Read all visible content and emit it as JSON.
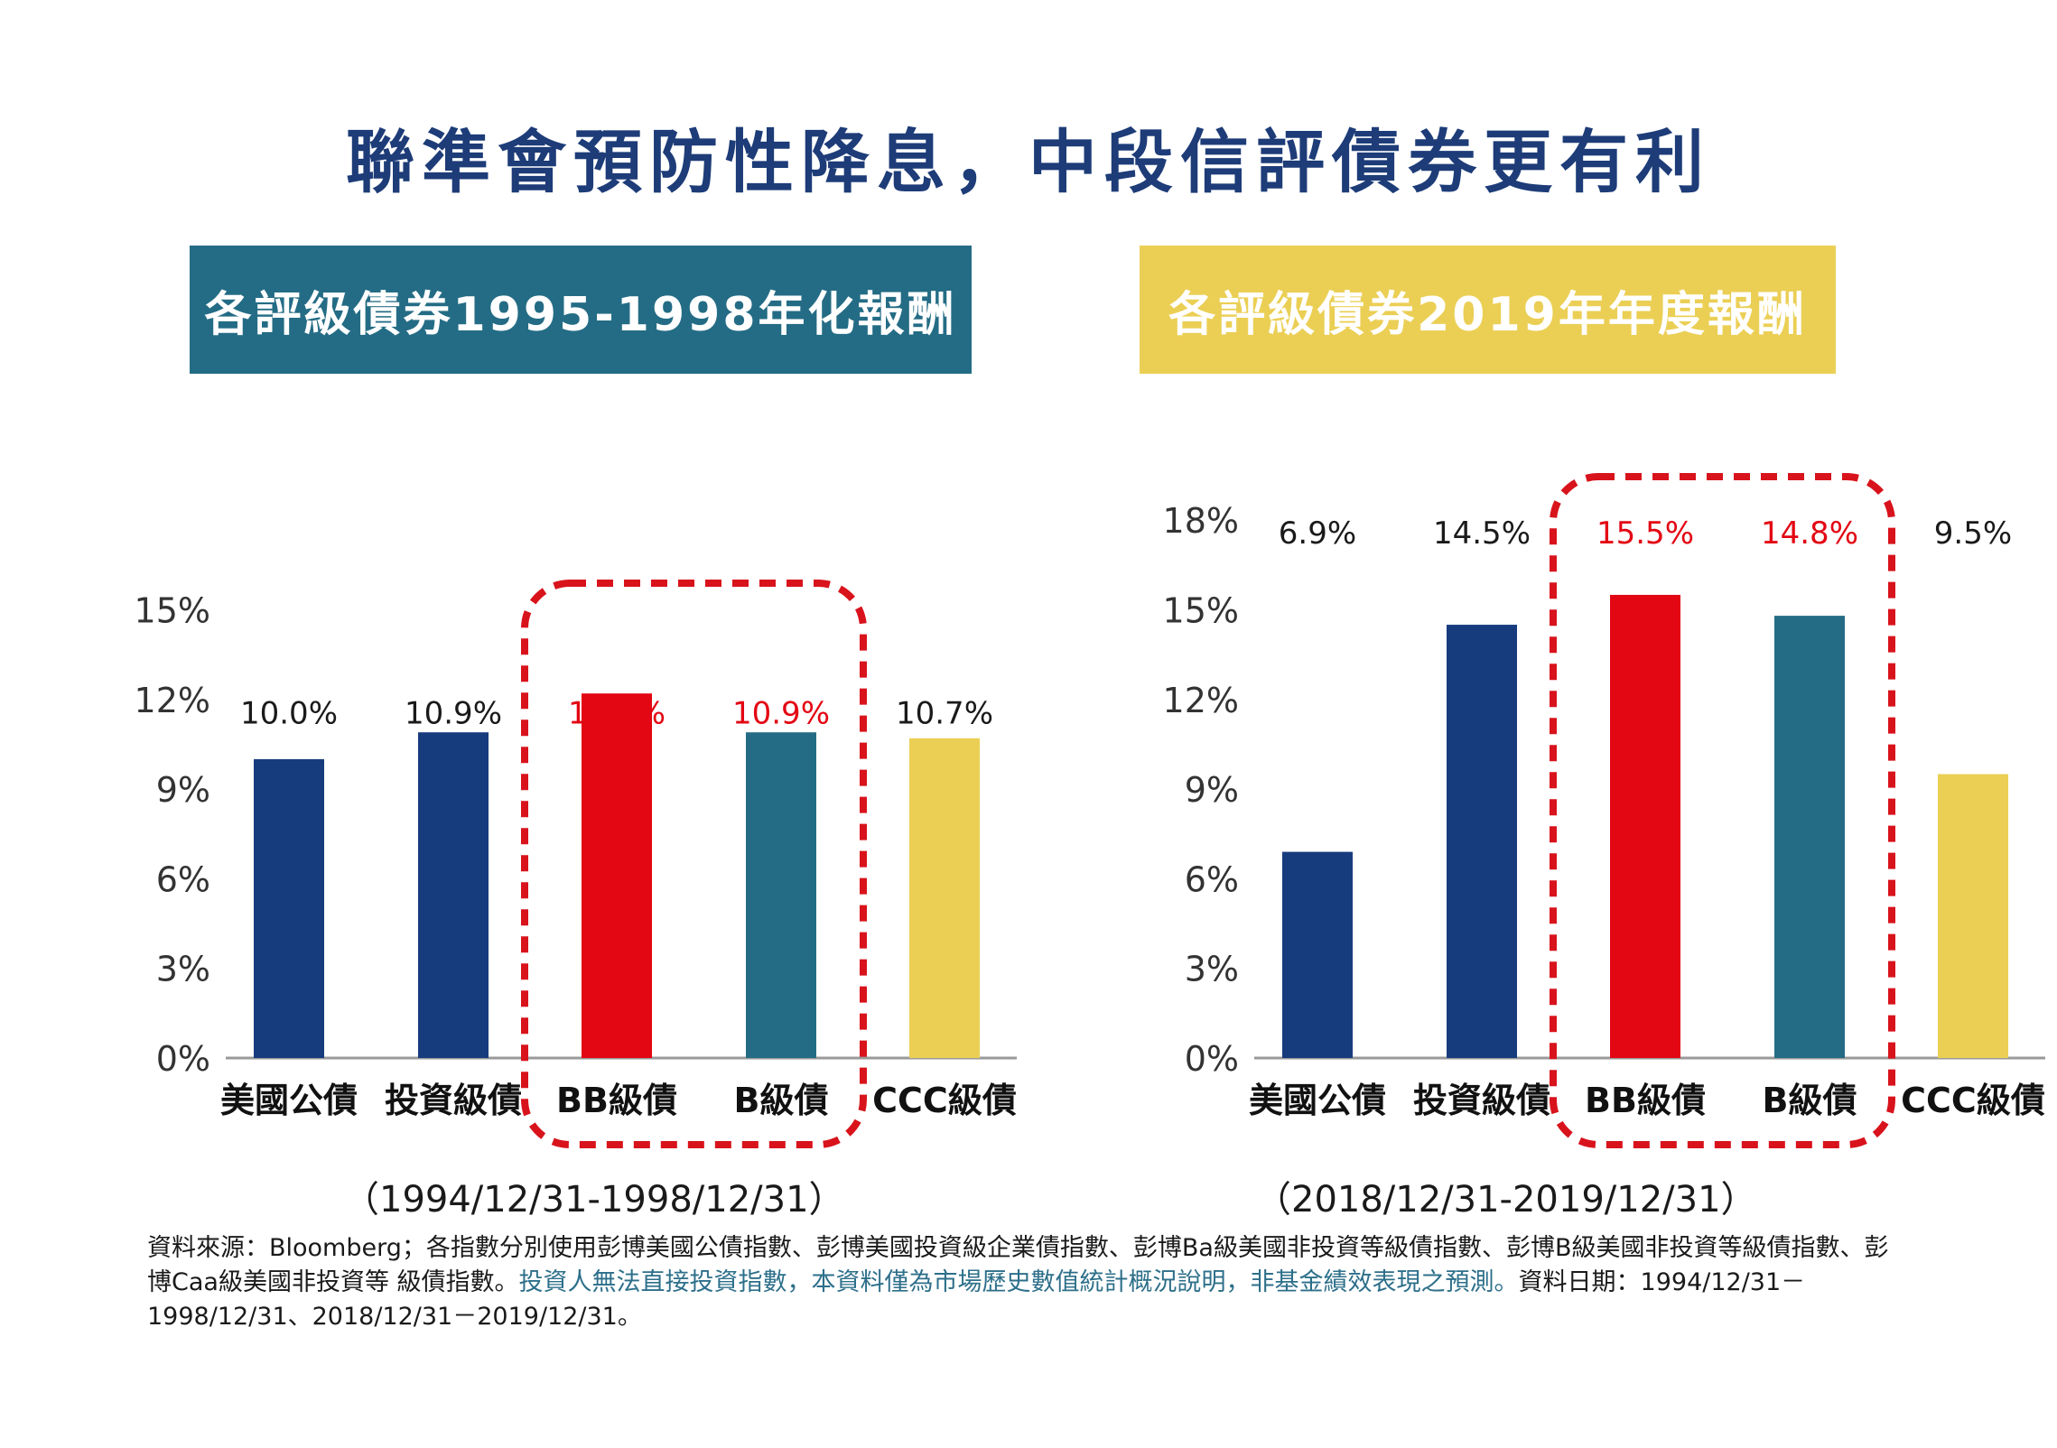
{
  "title": "聯準會預防性降息，中段信評債券更有利",
  "colors": {
    "title": "#1d3c78",
    "navy": "#173c7e",
    "red": "#e30613",
    "teal": "#246c85",
    "yellow": "#ebcf55",
    "highlight_text": "#e30613",
    "dash_box": "#d8131c"
  },
  "chart_data": [
    {
      "type": "bar",
      "title": "各評級債券1995-1998年化報酬",
      "title_bg": "#246c85",
      "title_color": "#ffffff",
      "categories": [
        "美國公債",
        "投資級債",
        "BB級債",
        "B級債",
        "CCC級債"
      ],
      "values": [
        10.0,
        10.9,
        12.2,
        10.9,
        10.7
      ],
      "data_labels": [
        "10.0%",
        "10.9%",
        "12.2%",
        "10.9%",
        "10.7%"
      ],
      "bar_colors": [
        "#173c7e",
        "#173c7e",
        "#e30613",
        "#246c85",
        "#ebcf55"
      ],
      "label_colors": [
        "#1a1a1a",
        "#1a1a1a",
        "#e30613",
        "#e30613",
        "#1a1a1a"
      ],
      "yticks": [
        "0%",
        "3%",
        "6%",
        "9%",
        "12%",
        "15%"
      ],
      "ylim": [
        0,
        15
      ],
      "highlight": [
        "BB級債",
        "B級債"
      ],
      "period": "（1994/12/31-1998/12/31）"
    },
    {
      "type": "bar",
      "title": "各評級債券2019年年度報酬",
      "title_bg": "#ebcf55",
      "title_color": "#ffffff",
      "categories": [
        "美國公債",
        "投資級債",
        "BB級債",
        "B級債",
        "CCC級債"
      ],
      "values": [
        6.9,
        14.5,
        15.5,
        14.8,
        9.5
      ],
      "data_labels": [
        "6.9%",
        "14.5%",
        "15.5%",
        "14.8%",
        "9.5%"
      ],
      "bar_colors": [
        "#173c7e",
        "#173c7e",
        "#e30613",
        "#246c85",
        "#ebcf55"
      ],
      "label_colors": [
        "#1a1a1a",
        "#1a1a1a",
        "#e30613",
        "#e30613",
        "#1a1a1a"
      ],
      "yticks": [
        "0%",
        "3%",
        "6%",
        "9%",
        "12%",
        "15%",
        "18%"
      ],
      "ylim": [
        0,
        18
      ],
      "highlight": [
        "BB級債",
        "B級債"
      ],
      "period": "（2018/12/31-2019/12/31）"
    }
  ],
  "footnote": {
    "part1": "資料來源：Bloomberg；各指數分別使用彭博美國公債指數、彭博美國投資級企業債指數、彭博Ba級美國非投資等級債指數、彭博B級美國非投資等級債指數、彭博Caa級美國非投資等 級債指數。",
    "part2": "投資人無法直接投資指數，本資料僅為市場歷史數值統計概況說明，非基金績效表現之預測。",
    "part3": "資料日期：1994/12/31－1998/12/31、2018/12/31－2019/12/31。"
  }
}
